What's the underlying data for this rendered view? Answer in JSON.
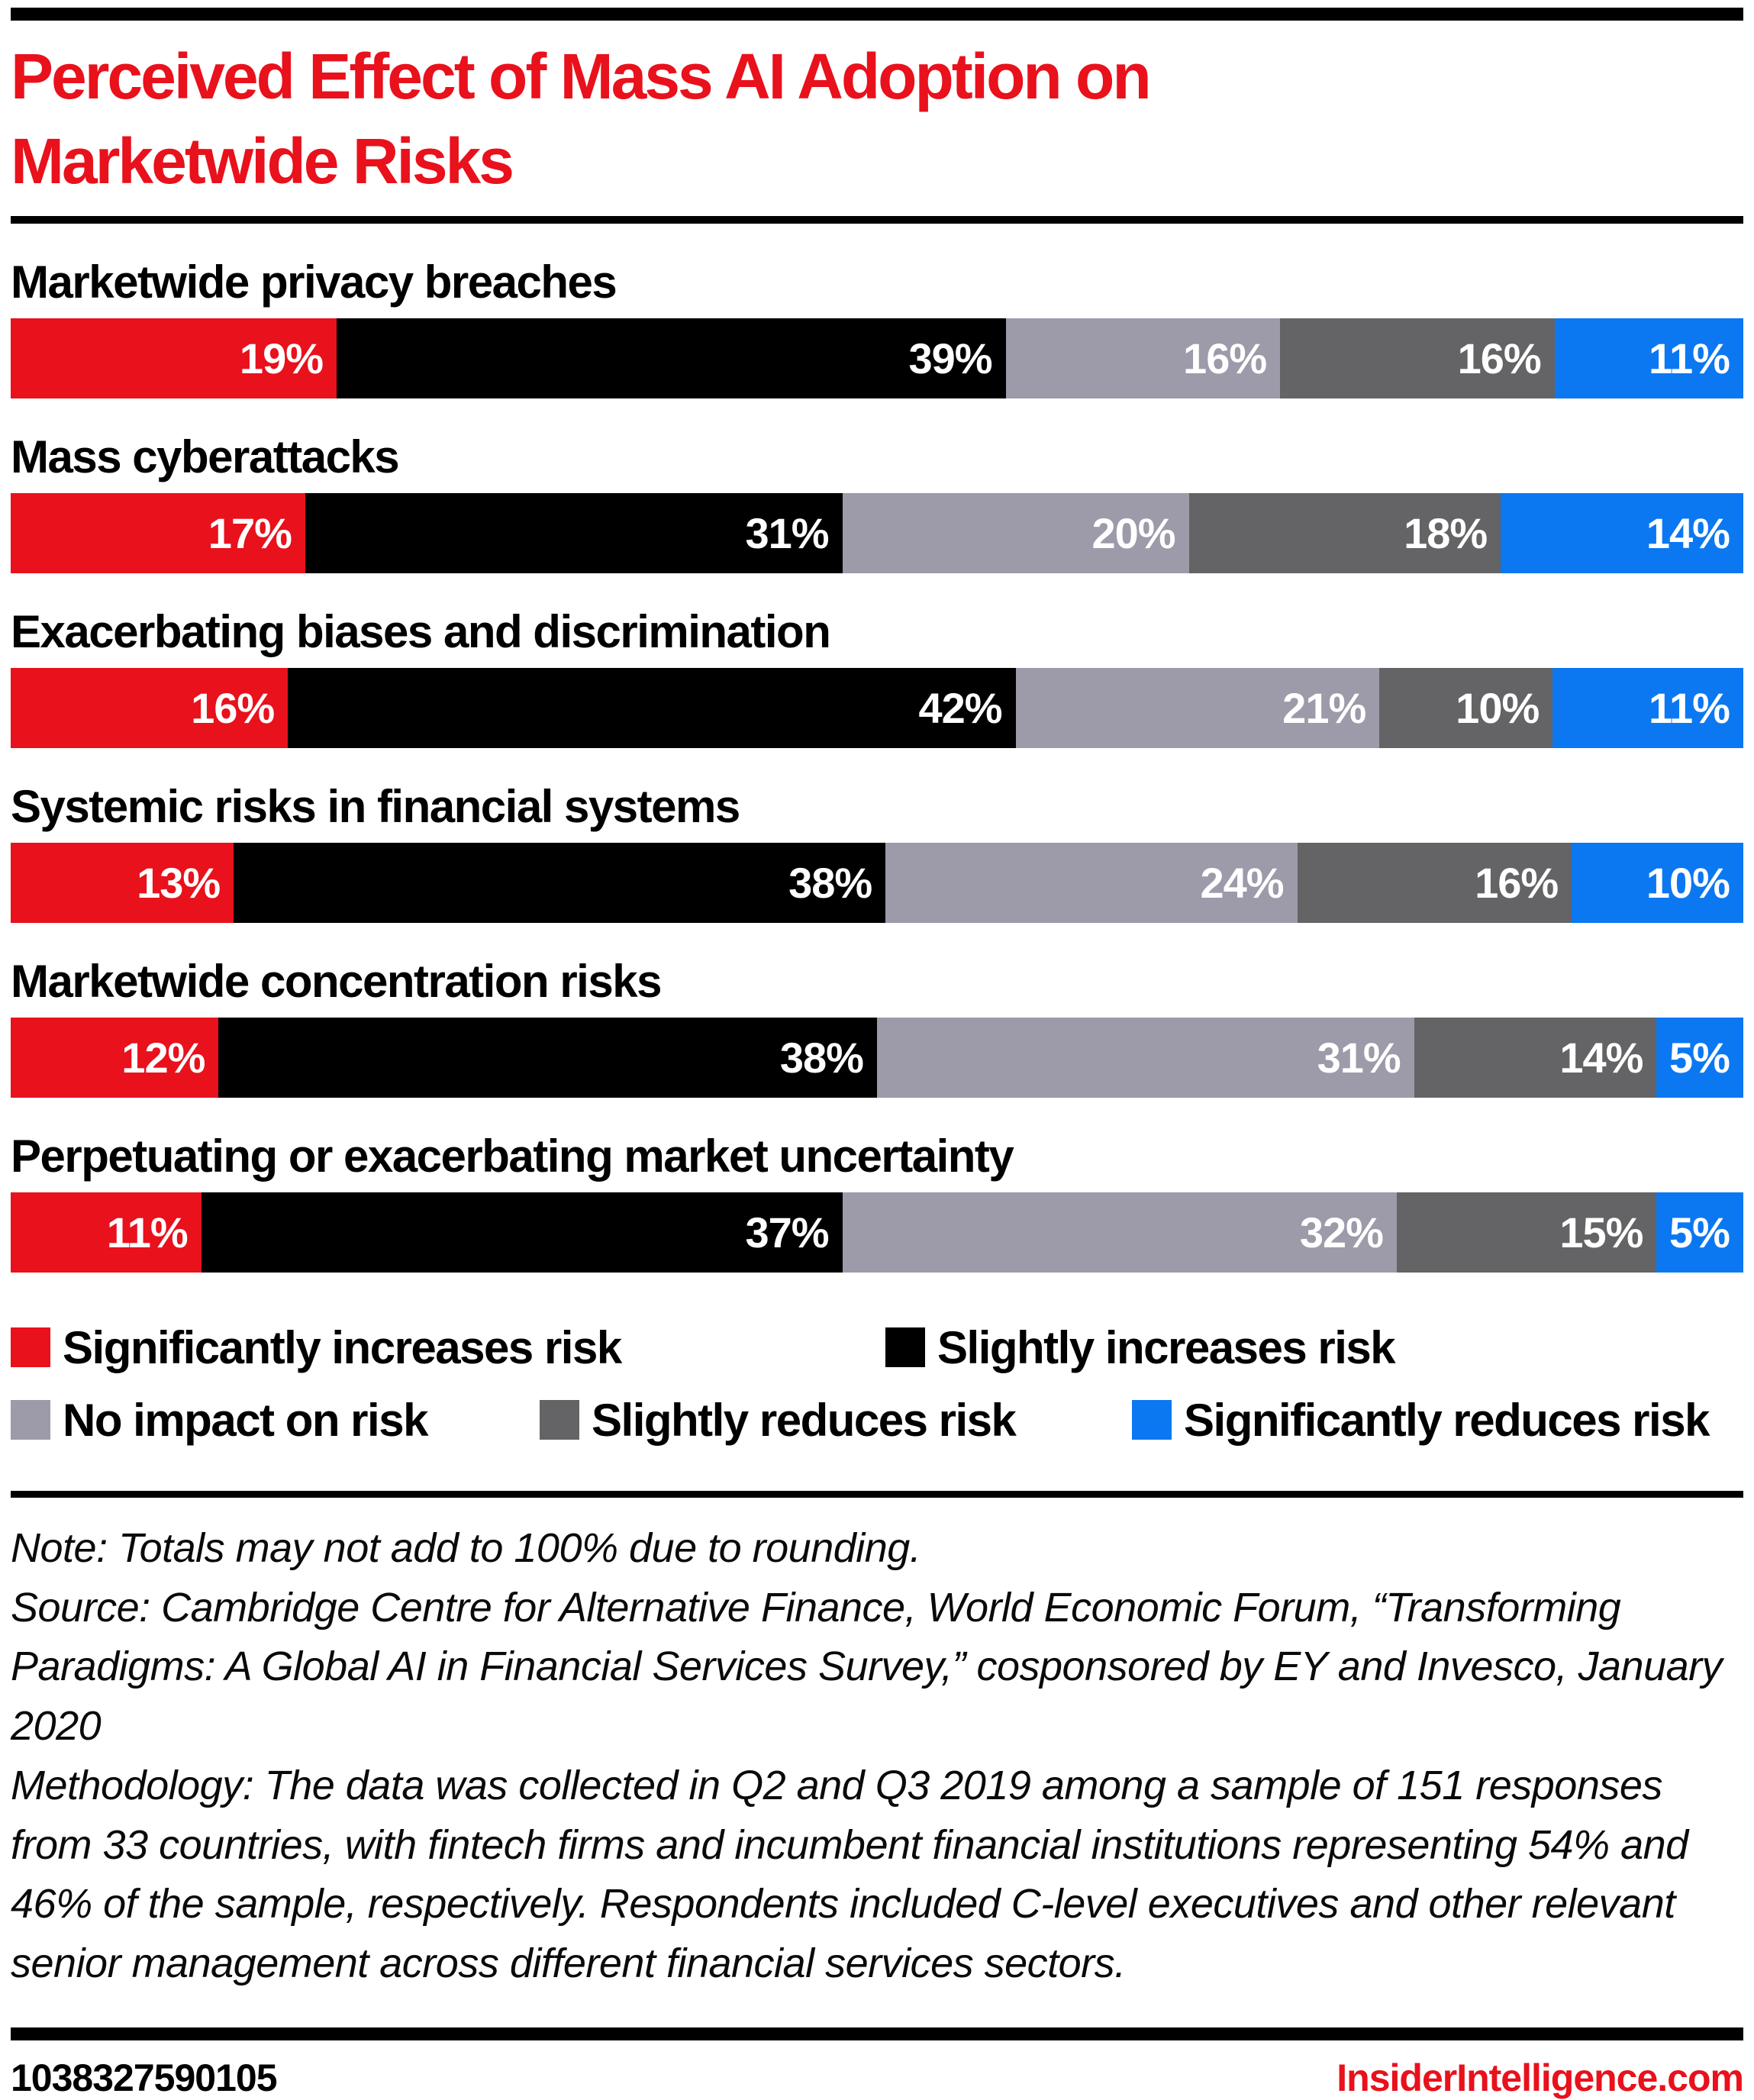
{
  "title": {
    "line1": "Perceived Effect of Mass AI Adoption on",
    "line2": "Marketwide Risks"
  },
  "chart_data": {
    "type": "bar",
    "stacked": true,
    "orientation": "horizontal",
    "title": "Perceived Effect of Mass AI Adoption on Marketwide Risks",
    "legend_position": "bottom",
    "value_label_style": "percent, white, inside right edge of each segment",
    "categories": [
      "Marketwide privacy breaches",
      "Mass cyberattacks",
      "Exacerbating biases and discrimination",
      "Systemic risks in financial systems",
      "Marketwide concentration risks",
      "Perpetuating or exacerbating market uncertainty"
    ],
    "series": [
      {
        "name": "Significantly increases risk",
        "color": "#e8111c",
        "values": [
          19,
          17,
          16,
          13,
          12,
          11
        ]
      },
      {
        "name": "Slightly increases risk",
        "color": "#000000",
        "values": [
          39,
          31,
          42,
          38,
          38,
          37
        ]
      },
      {
        "name": "No impact on risk",
        "color": "#9d9aa9",
        "values": [
          16,
          20,
          21,
          24,
          31,
          32
        ]
      },
      {
        "name": "Slightly reduces risk",
        "color": "#646365",
        "values": [
          16,
          18,
          10,
          16,
          14,
          15
        ]
      },
      {
        "name": "Significantly reduces risk",
        "color": "#0b78f2",
        "values": [
          11,
          14,
          11,
          10,
          5,
          5
        ]
      }
    ],
    "cell_labels": [
      [
        "19%",
        "39%",
        "16%",
        "16%",
        "11%"
      ],
      [
        "17%",
        "31%",
        "20%",
        "18%",
        "14%"
      ],
      [
        "16%",
        "42%",
        "21%",
        "10%",
        "11%"
      ],
      [
        "13%",
        "38%",
        "24%",
        "16%",
        "10%"
      ],
      [
        "12%",
        "38%",
        "31%",
        "14%",
        "5%"
      ],
      [
        "11%",
        "37%",
        "32%",
        "15%",
        "5%"
      ]
    ]
  },
  "notes": {
    "note": "Note: Totals may not add to 100% due to rounding.",
    "source": "Source: Cambridge Centre for Alternative Finance, World Economic Forum, “Transforming Paradigms: A Global AI in Financial Services Survey,” cosponsored by EY and Invesco, January 2020",
    "methodology": "Methodology: The data was collected in Q2 and Q3 2019 among a sample of 151 responses from 33 countries, with fintech firms and incumbent financial institutions representing 54% and 46% of the sample, respectively. Respondents included C-level executives and other relevant senior management across different financial services sectors."
  },
  "footer": {
    "chart_id": "1038327590105",
    "brand": "InsiderIntelligence.com"
  },
  "colors": {
    "accent_red": "#e8111c",
    "light_gray": "#9d9aa9",
    "dark_gray": "#646365",
    "blue": "#0b78f2"
  }
}
